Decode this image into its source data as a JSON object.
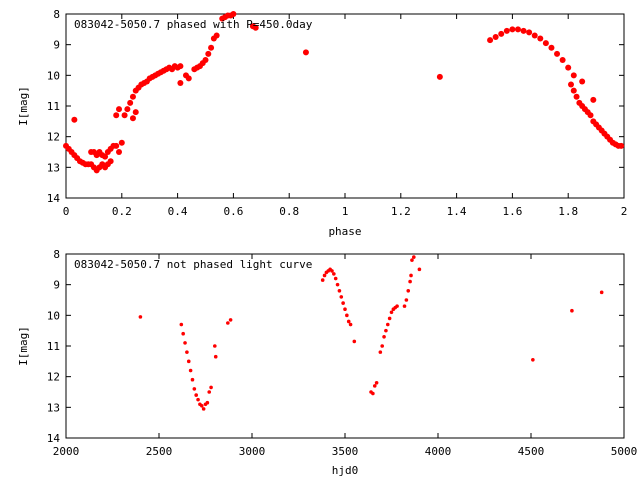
{
  "chart_data": [
    {
      "type": "scatter",
      "title": "083042-5050.7 phased with P=450.0day",
      "xlabel": "phase",
      "ylabel": "I[mag]",
      "xlim": [
        0,
        2
      ],
      "ylim": [
        8,
        14
      ],
      "y_inverted": true,
      "grid": false,
      "x_ticks": [
        "0",
        "0.2",
        "0.4",
        "0.6",
        "0.8",
        "1",
        "1.2",
        "1.4",
        "1.6",
        "1.8",
        "2"
      ],
      "y_ticks": [
        "8",
        "9",
        "10",
        "11",
        "12",
        "13",
        "14"
      ],
      "marker_color": "#ff0000",
      "points": [
        [
          0.0,
          12.3
        ],
        [
          0.01,
          12.4
        ],
        [
          0.02,
          12.5
        ],
        [
          0.03,
          12.6
        ],
        [
          0.04,
          12.7
        ],
        [
          0.05,
          12.8
        ],
        [
          0.06,
          12.85
        ],
        [
          0.07,
          12.9
        ],
        [
          0.08,
          12.9
        ],
        [
          0.09,
          12.9
        ],
        [
          0.1,
          13.0
        ],
        [
          0.11,
          13.1
        ],
        [
          0.12,
          13.0
        ],
        [
          0.13,
          12.9
        ],
        [
          0.14,
          13.0
        ],
        [
          0.15,
          12.9
        ],
        [
          0.16,
          12.8
        ],
        [
          0.03,
          11.45
        ],
        [
          0.09,
          12.5
        ],
        [
          0.1,
          12.5
        ],
        [
          0.11,
          12.6
        ],
        [
          0.12,
          12.5
        ],
        [
          0.13,
          12.6
        ],
        [
          0.14,
          12.65
        ],
        [
          0.15,
          12.5
        ],
        [
          0.16,
          12.4
        ],
        [
          0.17,
          12.3
        ],
        [
          0.18,
          12.3
        ],
        [
          0.19,
          12.5
        ],
        [
          0.2,
          12.2
        ],
        [
          0.18,
          11.3
        ],
        [
          0.19,
          11.1
        ],
        [
          0.21,
          11.3
        ],
        [
          0.22,
          11.1
        ],
        [
          0.23,
          10.9
        ],
        [
          0.24,
          10.7
        ],
        [
          0.25,
          10.5
        ],
        [
          0.26,
          10.4
        ],
        [
          0.27,
          10.3
        ],
        [
          0.28,
          10.25
        ],
        [
          0.29,
          10.2
        ],
        [
          0.3,
          10.1
        ],
        [
          0.31,
          10.05
        ],
        [
          0.32,
          10.0
        ],
        [
          0.33,
          9.95
        ],
        [
          0.34,
          9.9
        ],
        [
          0.35,
          9.85
        ],
        [
          0.36,
          9.8
        ],
        [
          0.37,
          9.75
        ],
        [
          0.38,
          9.8
        ],
        [
          0.39,
          9.7
        ],
        [
          0.4,
          9.75
        ],
        [
          0.41,
          9.7
        ],
        [
          0.24,
          11.4
        ],
        [
          0.25,
          11.2
        ],
        [
          0.41,
          10.25
        ],
        [
          0.43,
          10.0
        ],
        [
          0.44,
          10.1
        ],
        [
          0.46,
          9.8
        ],
        [
          0.47,
          9.75
        ],
        [
          0.48,
          9.7
        ],
        [
          0.49,
          9.6
        ],
        [
          0.5,
          9.5
        ],
        [
          0.51,
          9.3
        ],
        [
          0.52,
          9.1
        ],
        [
          0.53,
          8.8
        ],
        [
          0.54,
          8.7
        ],
        [
          0.56,
          8.15
        ],
        [
          0.57,
          8.1
        ],
        [
          0.58,
          8.05
        ],
        [
          0.59,
          8.05
        ],
        [
          0.6,
          8.0
        ],
        [
          0.67,
          8.4
        ],
        [
          0.68,
          8.45
        ],
        [
          0.86,
          9.25
        ],
        [
          1.34,
          10.05
        ],
        [
          1.52,
          8.85
        ],
        [
          1.54,
          8.75
        ],
        [
          1.56,
          8.65
        ],
        [
          1.58,
          8.55
        ],
        [
          1.6,
          8.5
        ],
        [
          1.62,
          8.5
        ],
        [
          1.64,
          8.55
        ],
        [
          1.66,
          8.6
        ],
        [
          1.68,
          8.7
        ],
        [
          1.7,
          8.8
        ],
        [
          1.72,
          8.95
        ],
        [
          1.74,
          9.1
        ],
        [
          1.76,
          9.3
        ],
        [
          1.78,
          9.5
        ],
        [
          1.8,
          9.75
        ],
        [
          1.82,
          10.0
        ],
        [
          1.81,
          10.3
        ],
        [
          1.82,
          10.5
        ],
        [
          1.83,
          10.7
        ],
        [
          1.84,
          10.9
        ],
        [
          1.85,
          11.0
        ],
        [
          1.86,
          11.1
        ],
        [
          1.87,
          11.2
        ],
        [
          1.88,
          11.3
        ],
        [
          1.89,
          11.5
        ],
        [
          1.9,
          11.6
        ],
        [
          1.91,
          11.7
        ],
        [
          1.92,
          11.8
        ],
        [
          1.93,
          11.9
        ],
        [
          1.94,
          12.0
        ],
        [
          1.95,
          12.1
        ],
        [
          1.96,
          12.2
        ],
        [
          1.97,
          12.25
        ],
        [
          1.98,
          12.3
        ],
        [
          1.99,
          12.3
        ],
        [
          1.85,
          10.2
        ],
        [
          1.89,
          10.8
        ]
      ]
    },
    {
      "type": "scatter",
      "title": "083042-5050.7 not phased light curve",
      "xlabel": "hjd0",
      "ylabel": "I[mag]",
      "xlim": [
        2000,
        5000
      ],
      "ylim": [
        8,
        14
      ],
      "y_inverted": true,
      "grid": false,
      "x_ticks": [
        "2000",
        "2500",
        "3000",
        "3500",
        "4000",
        "4500",
        "5000"
      ],
      "y_ticks": [
        "8",
        "9",
        "10",
        "11",
        "12",
        "13",
        "14"
      ],
      "marker_color": "#ff0000",
      "points": [
        [
          2400,
          10.05
        ],
        [
          2620,
          10.3
        ],
        [
          2630,
          10.6
        ],
        [
          2640,
          10.9
        ],
        [
          2650,
          11.2
        ],
        [
          2660,
          11.5
        ],
        [
          2670,
          11.8
        ],
        [
          2680,
          12.1
        ],
        [
          2690,
          12.4
        ],
        [
          2700,
          12.6
        ],
        [
          2710,
          12.75
        ],
        [
          2720,
          12.9
        ],
        [
          2730,
          12.95
        ],
        [
          2740,
          13.05
        ],
        [
          2750,
          12.9
        ],
        [
          2760,
          12.85
        ],
        [
          2770,
          12.5
        ],
        [
          2780,
          12.35
        ],
        [
          2800,
          11.0
        ],
        [
          2805,
          11.35
        ],
        [
          2870,
          10.25
        ],
        [
          2885,
          10.15
        ],
        [
          3380,
          8.85
        ],
        [
          3390,
          8.7
        ],
        [
          3400,
          8.6
        ],
        [
          3410,
          8.55
        ],
        [
          3420,
          8.5
        ],
        [
          3430,
          8.55
        ],
        [
          3440,
          8.65
        ],
        [
          3450,
          8.8
        ],
        [
          3460,
          9.0
        ],
        [
          3470,
          9.2
        ],
        [
          3480,
          9.4
        ],
        [
          3490,
          9.6
        ],
        [
          3500,
          9.8
        ],
        [
          3510,
          10.0
        ],
        [
          3520,
          10.2
        ],
        [
          3530,
          10.3
        ],
        [
          3550,
          10.85
        ],
        [
          3640,
          12.5
        ],
        [
          3650,
          12.55
        ],
        [
          3660,
          12.3
        ],
        [
          3670,
          12.2
        ],
        [
          3690,
          11.2
        ],
        [
          3700,
          11.0
        ],
        [
          3710,
          10.7
        ],
        [
          3720,
          10.5
        ],
        [
          3730,
          10.3
        ],
        [
          3740,
          10.1
        ],
        [
          3750,
          9.9
        ],
        [
          3760,
          9.8
        ],
        [
          3770,
          9.75
        ],
        [
          3780,
          9.7
        ],
        [
          3820,
          9.7
        ],
        [
          3830,
          9.5
        ],
        [
          3840,
          9.2
        ],
        [
          3850,
          8.9
        ],
        [
          3855,
          8.7
        ],
        [
          3860,
          8.2
        ],
        [
          3870,
          8.1
        ],
        [
          3900,
          8.5
        ],
        [
          4510,
          11.45
        ],
        [
          4720,
          9.85
        ],
        [
          4880,
          9.25
        ]
      ]
    }
  ]
}
